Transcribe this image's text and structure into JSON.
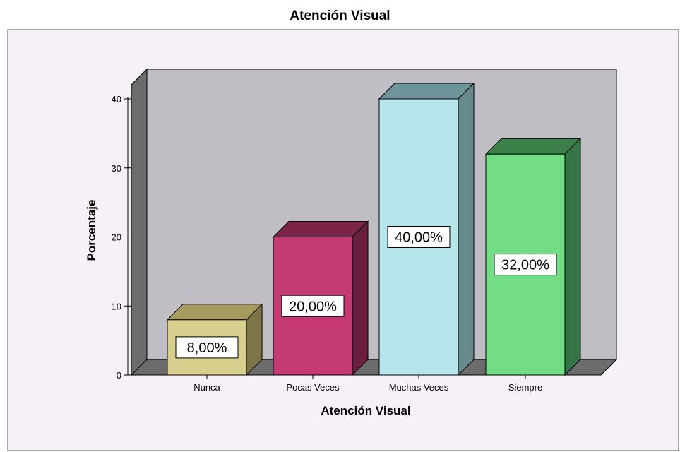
{
  "title": "Atención Visual",
  "chart_data": {
    "type": "bar",
    "title": "",
    "xlabel": "Atención Visual",
    "ylabel": "Porcentaje",
    "categories": [
      "Nunca",
      "Pocas Veces",
      "Muchas Veces",
      "Siempre"
    ],
    "values": [
      8,
      20,
      40,
      32
    ],
    "data_labels": [
      "8,00%",
      "20,00%",
      "40,00%",
      "32,00%"
    ],
    "ylim": [
      0,
      40
    ],
    "yticks": [
      0,
      10,
      20,
      30,
      40
    ],
    "style": "3d",
    "grid": false,
    "legend": "none"
  },
  "colors": {
    "frame_bg": "#f6f1f6",
    "plot_back_wall": "#c0bec4",
    "plot_side_wall": "#6c6c6c",
    "plot_floor": "#6c6c6c",
    "bar_front": [
      "#d8cf8f",
      "#c53a73",
      "#b6e6ec",
      "#72dd84"
    ],
    "bar_top": [
      "#a59b5e",
      "#7b2447",
      "#6f949a",
      "#3a8048"
    ],
    "bar_side": [
      "#7d7447",
      "#6a1f3f",
      "#688a8f",
      "#34754a"
    ]
  }
}
